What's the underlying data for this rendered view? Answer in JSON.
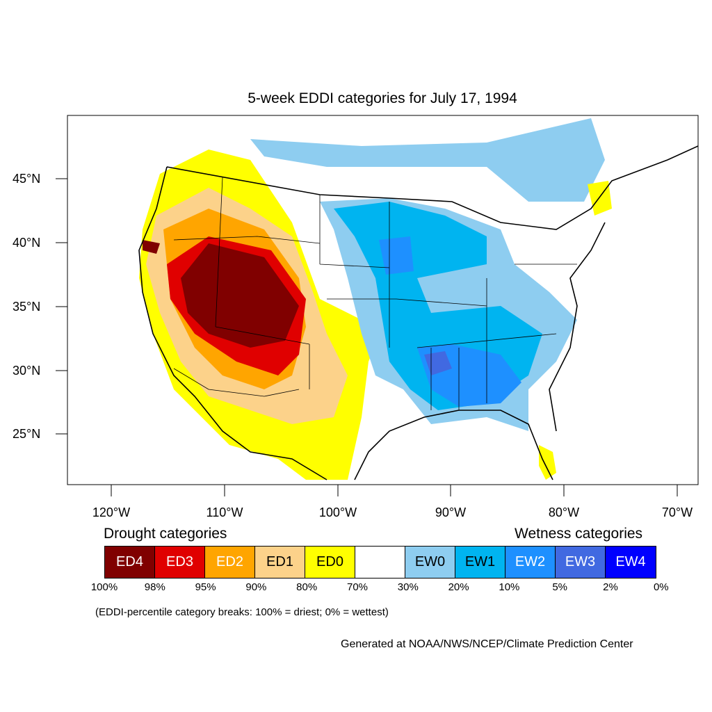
{
  "title": "5-week EDDI categories for July 17, 1994",
  "lat_labels": [
    "45°N",
    "40°N",
    "35°N",
    "30°N",
    "25°N"
  ],
  "lon_labels": [
    "120°W",
    "110°W",
    "100°W",
    "90°W",
    "80°W",
    "70°W"
  ],
  "legend": {
    "drought_heading": "Drought categories",
    "wetness_heading": "Wetness categories",
    "categories": [
      {
        "label": "ED4",
        "color": "#800000",
        "text_color": "#ffffff"
      },
      {
        "label": "ED3",
        "color": "#e00000",
        "text_color": "#ffffff"
      },
      {
        "label": "ED2",
        "color": "#ffa500",
        "text_color": "#ffffff"
      },
      {
        "label": "ED1",
        "color": "#fcd28a",
        "text_color": "#000000"
      },
      {
        "label": "ED0",
        "color": "#ffff00",
        "text_color": "#000000"
      },
      {
        "label": "",
        "color": "#ffffff",
        "text_color": "#000000"
      },
      {
        "label": "EW0",
        "color": "#8ecdf0",
        "text_color": "#000000"
      },
      {
        "label": "EW1",
        "color": "#00b4f0",
        "text_color": "#000000"
      },
      {
        "label": "EW2",
        "color": "#1e90ff",
        "text_color": "#ffffff"
      },
      {
        "label": "EW3",
        "color": "#4169e1",
        "text_color": "#ffffff"
      },
      {
        "label": "EW4",
        "color": "#0000ff",
        "text_color": "#ffffff"
      }
    ],
    "percentiles": [
      "100%",
      "98%",
      "95%",
      "90%",
      "80%",
      "70%",
      "30%",
      "20%",
      "10%",
      "5%",
      "2%",
      "0%"
    ]
  },
  "note": "(EDDI-percentile category breaks: 100% = driest; 0% = wettest)",
  "credit": "Generated at NOAA/NWS/NCEP/Climate Prediction Center"
}
